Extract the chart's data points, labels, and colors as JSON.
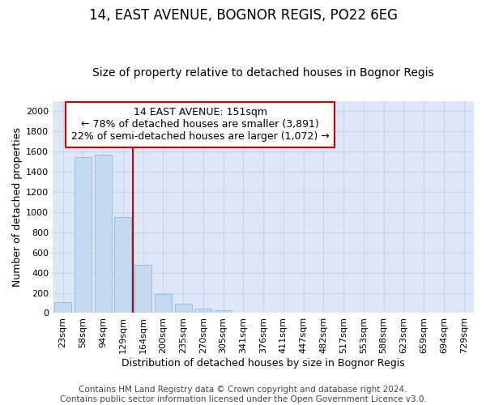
{
  "title1": "14, EAST AVENUE, BOGNOR REGIS, PO22 6EG",
  "title2": "Size of property relative to detached houses in Bognor Regis",
  "xlabel": "Distribution of detached houses by size in Bognor Regis",
  "ylabel": "Number of detached properties",
  "categories": [
    "23sqm",
    "58sqm",
    "94sqm",
    "129sqm",
    "164sqm",
    "200sqm",
    "235sqm",
    "270sqm",
    "305sqm",
    "341sqm",
    "376sqm",
    "411sqm",
    "447sqm",
    "482sqm",
    "517sqm",
    "553sqm",
    "588sqm",
    "623sqm",
    "659sqm",
    "694sqm",
    "729sqm"
  ],
  "values": [
    110,
    1540,
    1570,
    950,
    480,
    190,
    95,
    45,
    30,
    0,
    0,
    0,
    0,
    0,
    0,
    0,
    0,
    0,
    0,
    0,
    0
  ],
  "bar_color": "#c5d9f0",
  "bar_edge_color": "#7fb3e0",
  "vline_pos": 3.5,
  "vline_color": "#cc0000",
  "annot_line1": "14 EAST AVENUE: 151sqm",
  "annot_line2": "← 78% of detached houses are smaller (3,891)",
  "annot_line3": "22% of semi-detached houses are larger (1,072) →",
  "annot_facecolor": "#ffffff",
  "annot_edgecolor": "#cc0000",
  "ylim": [
    0,
    2100
  ],
  "yticks": [
    0,
    200,
    400,
    600,
    800,
    1000,
    1200,
    1400,
    1600,
    1800,
    2000
  ],
  "grid_color": "#c8d4e8",
  "axes_bg": "#dce8f8",
  "footer1": "Contains HM Land Registry data © Crown copyright and database right 2024.",
  "footer2": "Contains public sector information licensed under the Open Government Licence v3.0.",
  "title1_fs": 12,
  "title2_fs": 10,
  "xlabel_fs": 9,
  "ylabel_fs": 9,
  "tick_fs": 8,
  "annot_fs": 9,
  "footer_fs": 7.5
}
